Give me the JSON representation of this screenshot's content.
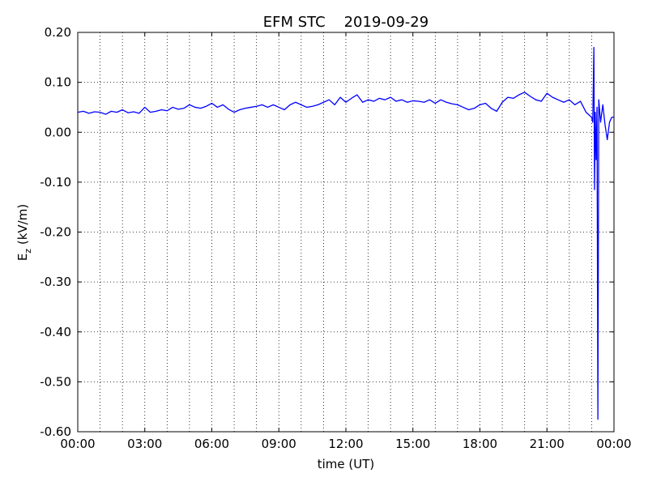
{
  "chart_data": {
    "type": "line",
    "title": "EFM STC    2019-09-29",
    "xlabel": "time (UT)",
    "ylabel": {
      "base": "E",
      "sub": "z",
      "rest": " (kV/m)"
    },
    "xlim": [
      0,
      24
    ],
    "ylim": [
      -0.6,
      0.2
    ],
    "xticks": [
      {
        "value": 0,
        "label": "00:00"
      },
      {
        "value": 3,
        "label": "03:00"
      },
      {
        "value": 6,
        "label": "06:00"
      },
      {
        "value": 9,
        "label": "09:00"
      },
      {
        "value": 12,
        "label": "12:00"
      },
      {
        "value": 15,
        "label": "15:00"
      },
      {
        "value": 18,
        "label": "18:00"
      },
      {
        "value": 21,
        "label": "21:00"
      },
      {
        "value": 24,
        "label": "00:00"
      }
    ],
    "xgrid": [
      1,
      2,
      4,
      5,
      7,
      8,
      10,
      11,
      13,
      14,
      16,
      17,
      19,
      20,
      22,
      23
    ],
    "yticks": [
      {
        "value": 0.2,
        "label": "0.20"
      },
      {
        "value": 0.1,
        "label": "0.10"
      },
      {
        "value": 0,
        "label": "0.00"
      },
      {
        "value": -0.1,
        "label": "-0.10"
      },
      {
        "value": -0.2,
        "label": "-0.20"
      },
      {
        "value": -0.3,
        "label": "-0.30"
      },
      {
        "value": -0.4,
        "label": "-0.40"
      },
      {
        "value": -0.5,
        "label": "-0.50"
      },
      {
        "value": -0.6,
        "label": "-0.60"
      }
    ],
    "grid": true,
    "series": [
      {
        "color": "#0000ff",
        "x": [
          0,
          0.25,
          0.5,
          0.75,
          1,
          1.25,
          1.5,
          1.75,
          2,
          2.25,
          2.5,
          2.75,
          3,
          3.25,
          3.5,
          3.75,
          4,
          4.25,
          4.5,
          4.75,
          5,
          5.25,
          5.5,
          5.75,
          6,
          6.25,
          6.5,
          6.75,
          7,
          7.25,
          7.5,
          7.75,
          8,
          8.25,
          8.5,
          8.75,
          9,
          9.25,
          9.5,
          9.75,
          10,
          10.25,
          10.5,
          10.75,
          11,
          11.25,
          11.5,
          11.75,
          12,
          12.25,
          12.5,
          12.75,
          13,
          13.25,
          13.5,
          13.75,
          14,
          14.25,
          14.5,
          14.75,
          15,
          15.25,
          15.5,
          15.75,
          16,
          16.25,
          16.5,
          16.75,
          17,
          17.25,
          17.5,
          17.75,
          18,
          18.25,
          18.5,
          18.75,
          19,
          19.25,
          19.5,
          19.75,
          20,
          20.25,
          20.5,
          20.75,
          21,
          21.25,
          21.5,
          21.75,
          22,
          22.25,
          22.5,
          22.75,
          23,
          23.05,
          23.1,
          23.13,
          23.16,
          23.2,
          23.24,
          23.28,
          23.32,
          23.4,
          23.5,
          23.6,
          23.7,
          23.8,
          23.9,
          24
        ],
        "values": [
          0.04,
          0.042,
          0.038,
          0.041,
          0.04,
          0.036,
          0.042,
          0.04,
          0.045,
          0.039,
          0.041,
          0.038,
          0.05,
          0.04,
          0.042,
          0.045,
          0.043,
          0.05,
          0.046,
          0.048,
          0.055,
          0.05,
          0.048,
          0.052,
          0.058,
          0.05,
          0.055,
          0.046,
          0.04,
          0.045,
          0.048,
          0.05,
          0.052,
          0.055,
          0.05,
          0.055,
          0.05,
          0.045,
          0.055,
          0.06,
          0.055,
          0.05,
          0.052,
          0.055,
          0.06,
          0.065,
          0.055,
          0.07,
          0.06,
          0.068,
          0.075,
          0.06,
          0.065,
          0.062,
          0.068,
          0.065,
          0.07,
          0.062,
          0.065,
          0.06,
          0.063,
          0.062,
          0.06,
          0.065,
          0.058,
          0.065,
          0.06,
          0.057,
          0.055,
          0.05,
          0.045,
          0.048,
          0.055,
          0.058,
          0.048,
          0.042,
          0.06,
          0.07,
          0.068,
          0.075,
          0.08,
          0.072,
          0.065,
          0.062,
          0.078,
          0.07,
          0.065,
          0.06,
          0.065,
          0.055,
          0.062,
          0.04,
          0.03,
          0.02,
          0.17,
          -0.115,
          0.04,
          -0.055,
          0.05,
          -0.575,
          0.065,
          0.02,
          0.055,
          0.015,
          -0.015,
          0.02,
          0.03,
          0.03
        ]
      }
    ]
  }
}
